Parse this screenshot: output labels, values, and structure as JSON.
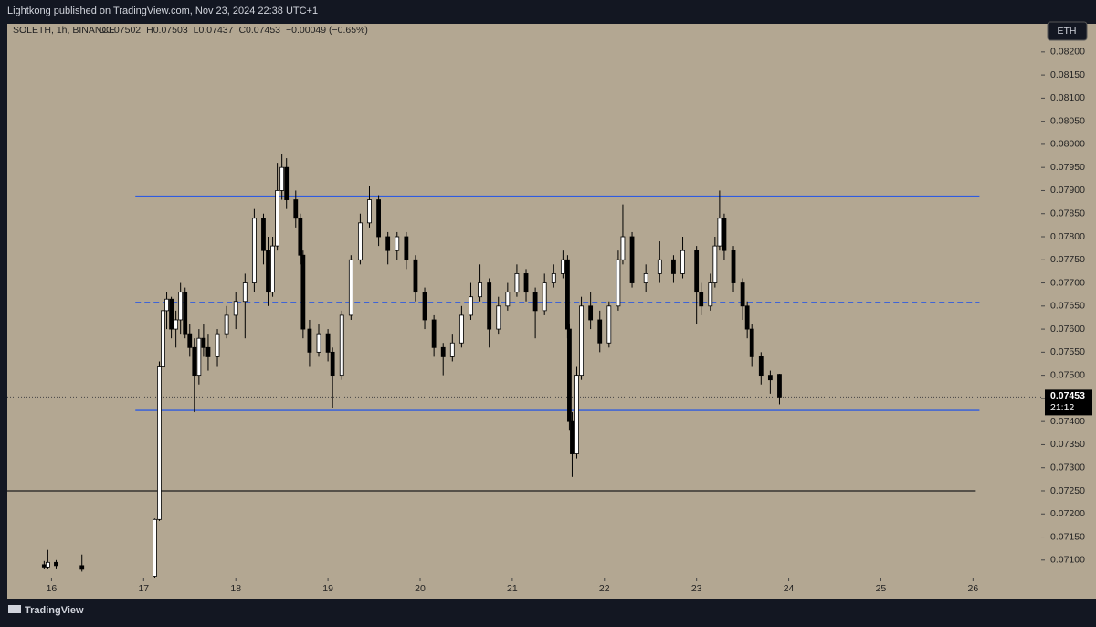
{
  "header": {
    "publisher": "Lightkong published on TradingView.com, Nov 23, 2024 22:38 UTC+1",
    "brand": "TradingView",
    "currency_button": "ETH"
  },
  "chart_data": {
    "type": "candlestick",
    "symbol": "SOLETH, 1h, BINANCE",
    "legend_values": [
      "O0.07502",
      "H0.07503",
      "L0.07437",
      "C0.07453",
      "−0.00049 (−0.65%)"
    ],
    "up_color": "#ffffff",
    "down_color": "#000000",
    "outline_color": "#000000",
    "background": "#b3a792",
    "xlim": [
      15.52,
      26.74
    ],
    "xticks": [
      16,
      17,
      18,
      19,
      20,
      21,
      22,
      23,
      24,
      25,
      26
    ],
    "ylim": [
      0.07062,
      0.08261
    ],
    "yticks": [
      {
        "value": 0.071,
        "label": "0.07100"
      },
      {
        "value": 0.0715,
        "label": "0.07150"
      },
      {
        "value": 0.072,
        "label": "0.07200"
      },
      {
        "value": 0.0725,
        "label": "0.07250"
      },
      {
        "value": 0.073,
        "label": "0.07300"
      },
      {
        "value": 0.0735,
        "label": "0.07350"
      },
      {
        "value": 0.074,
        "label": "0.07400"
      },
      {
        "value": 0.0745,
        "label": "0.07450"
      },
      {
        "value": 0.075,
        "label": "0.07500"
      },
      {
        "value": 0.0755,
        "label": "0.07550"
      },
      {
        "value": 0.076,
        "label": "0.07600"
      },
      {
        "value": 0.0765,
        "label": "0.07650"
      },
      {
        "value": 0.077,
        "label": "0.07700"
      },
      {
        "value": 0.0775,
        "label": "0.07750"
      },
      {
        "value": 0.078,
        "label": "0.07800"
      },
      {
        "value": 0.0785,
        "label": "0.07850"
      },
      {
        "value": 0.079,
        "label": "0.07900"
      },
      {
        "value": 0.0795,
        "label": "0.07950"
      },
      {
        "value": 0.08,
        "label": "0.08000"
      },
      {
        "value": 0.0805,
        "label": "0.08050"
      },
      {
        "value": 0.081,
        "label": "0.08100"
      },
      {
        "value": 0.0815,
        "label": "0.08150"
      },
      {
        "value": 0.082,
        "label": "0.08200"
      }
    ],
    "last_price": {
      "value": 0.07453,
      "label": "0.07453"
    },
    "countdown": "21:12",
    "levels": [
      {
        "value": 0.07888,
        "style": "solid",
        "color": "#2f5be0",
        "x": [
          16.91,
          26.07
        ]
      },
      {
        "value": 0.07658,
        "style": "dashed",
        "color": "#2f5be0",
        "x": [
          16.91,
          26.07
        ]
      },
      {
        "value": 0.07424,
        "style": "solid",
        "color": "#2f5be0",
        "x": [
          16.91,
          26.07
        ]
      },
      {
        "value": 0.0725,
        "style": "solid",
        "color": "#1e1e1e",
        "x": [
          15.52,
          26.03
        ]
      }
    ],
    "x": [
      15.92,
      15.96,
      16.05,
      16.33,
      17.12,
      17.17,
      17.21,
      17.25,
      17.3,
      17.35,
      17.4,
      17.45,
      17.5,
      17.55,
      17.6,
      17.65,
      17.7,
      17.8,
      17.9,
      18.0,
      18.1,
      18.2,
      18.3,
      18.35,
      18.4,
      18.45,
      18.5,
      18.55,
      18.65,
      18.7,
      18.73,
      18.8,
      18.9,
      19.0,
      19.05,
      19.15,
      19.25,
      19.35,
      19.45,
      19.55,
      19.65,
      19.75,
      19.85,
      19.95,
      20.05,
      20.15,
      20.25,
      20.35,
      20.45,
      20.55,
      20.65,
      20.75,
      20.85,
      20.95,
      21.05,
      21.15,
      21.25,
      21.35,
      21.45,
      21.55,
      21.6,
      21.62,
      21.65,
      21.7,
      21.75,
      21.85,
      21.95,
      22.05,
      22.15,
      22.2,
      22.3,
      22.45,
      22.6,
      22.75,
      22.85,
      23.0,
      23.05,
      23.15,
      23.2,
      23.25,
      23.3,
      23.4,
      23.5,
      23.55,
      23.6,
      23.7,
      23.8,
      23.9
    ],
    "ohlc": [
      [
        0.0709,
        0.07098,
        0.0708,
        0.07085
      ],
      [
        0.07085,
        0.07122,
        0.0708,
        0.07095
      ],
      [
        0.07095,
        0.071,
        0.07082,
        0.07088
      ],
      [
        0.07088,
        0.07112,
        0.07075,
        0.0708
      ],
      [
        0.07065,
        0.0719,
        0.0706,
        0.07188
      ],
      [
        0.07188,
        0.0753,
        0.07185,
        0.0752
      ],
      [
        0.0752,
        0.0766,
        0.0751,
        0.0764
      ],
      [
        0.0764,
        0.0768,
        0.076,
        0.07665
      ],
      [
        0.07665,
        0.0767,
        0.0758,
        0.076
      ],
      [
        0.076,
        0.0764,
        0.0756,
        0.0762
      ],
      [
        0.0762,
        0.077,
        0.0759,
        0.0768
      ],
      [
        0.0768,
        0.0769,
        0.0758,
        0.0759
      ],
      [
        0.0759,
        0.0761,
        0.0754,
        0.0756
      ],
      [
        0.0756,
        0.0758,
        0.0742,
        0.075
      ],
      [
        0.075,
        0.076,
        0.0748,
        0.0758
      ],
      [
        0.0758,
        0.0761,
        0.0754,
        0.0756
      ],
      [
        0.0756,
        0.0759,
        0.0751,
        0.0754
      ],
      [
        0.0754,
        0.076,
        0.0752,
        0.0759
      ],
      [
        0.0759,
        0.0765,
        0.0758,
        0.0763
      ],
      [
        0.0763,
        0.0768,
        0.076,
        0.0766
      ],
      [
        0.0766,
        0.0772,
        0.0758,
        0.077
      ],
      [
        0.077,
        0.0786,
        0.0768,
        0.0784
      ],
      [
        0.0784,
        0.0785,
        0.0774,
        0.0777
      ],
      [
        0.0777,
        0.078,
        0.0765,
        0.0768
      ],
      [
        0.0768,
        0.078,
        0.0767,
        0.0778
      ],
      [
        0.0778,
        0.0796,
        0.0777,
        0.079
      ],
      [
        0.079,
        0.0798,
        0.0788,
        0.0795
      ],
      [
        0.0795,
        0.0797,
        0.0786,
        0.0788
      ],
      [
        0.0788,
        0.079,
        0.0782,
        0.0784
      ],
      [
        0.0784,
        0.0785,
        0.0774,
        0.0776
      ],
      [
        0.0776,
        0.0777,
        0.0758,
        0.076
      ],
      [
        0.076,
        0.0762,
        0.0752,
        0.0755
      ],
      [
        0.0755,
        0.0761,
        0.0754,
        0.0759
      ],
      [
        0.0759,
        0.076,
        0.0753,
        0.0755
      ],
      [
        0.0755,
        0.0756,
        0.0743,
        0.075
      ],
      [
        0.075,
        0.0764,
        0.0749,
        0.0763
      ],
      [
        0.0763,
        0.0776,
        0.0762,
        0.0775
      ],
      [
        0.0775,
        0.0785,
        0.0774,
        0.0783
      ],
      [
        0.0783,
        0.0791,
        0.0782,
        0.0788
      ],
      [
        0.0788,
        0.0789,
        0.0778,
        0.078
      ],
      [
        0.078,
        0.0781,
        0.0774,
        0.0777
      ],
      [
        0.0777,
        0.0781,
        0.0775,
        0.078
      ],
      [
        0.078,
        0.0781,
        0.0773,
        0.0775
      ],
      [
        0.0775,
        0.0776,
        0.0766,
        0.0768
      ],
      [
        0.0768,
        0.0769,
        0.076,
        0.0762
      ],
      [
        0.0762,
        0.0763,
        0.0754,
        0.0756
      ],
      [
        0.0756,
        0.0757,
        0.075,
        0.0754
      ],
      [
        0.0754,
        0.0759,
        0.0753,
        0.0757
      ],
      [
        0.0757,
        0.0765,
        0.0756,
        0.0763
      ],
      [
        0.0763,
        0.077,
        0.0762,
        0.0767
      ],
      [
        0.0767,
        0.0774,
        0.0766,
        0.077
      ],
      [
        0.077,
        0.0771,
        0.0756,
        0.076
      ],
      [
        0.076,
        0.0767,
        0.0759,
        0.0765
      ],
      [
        0.0765,
        0.077,
        0.0764,
        0.0768
      ],
      [
        0.0768,
        0.0774,
        0.0767,
        0.0772
      ],
      [
        0.0772,
        0.0773,
        0.0766,
        0.0768
      ],
      [
        0.0768,
        0.0769,
        0.0758,
        0.0764
      ],
      [
        0.0764,
        0.0772,
        0.0763,
        0.077
      ],
      [
        0.077,
        0.0774,
        0.0769,
        0.0772
      ],
      [
        0.0772,
        0.0777,
        0.0771,
        0.0775
      ],
      [
        0.0775,
        0.0776,
        0.0758,
        0.076
      ],
      [
        0.076,
        0.0761,
        0.0738,
        0.074
      ],
      [
        0.074,
        0.0742,
        0.0728,
        0.0733
      ],
      [
        0.0733,
        0.0752,
        0.0732,
        0.075
      ],
      [
        0.075,
        0.0767,
        0.0749,
        0.0765
      ],
      [
        0.0765,
        0.0768,
        0.076,
        0.0762
      ],
      [
        0.0762,
        0.0764,
        0.0755,
        0.0757
      ],
      [
        0.0757,
        0.0766,
        0.0756,
        0.0765
      ],
      [
        0.0765,
        0.0777,
        0.0764,
        0.0775
      ],
      [
        0.0775,
        0.0787,
        0.0774,
        0.078
      ],
      [
        0.078,
        0.0781,
        0.0769,
        0.077
      ],
      [
        0.077,
        0.0774,
        0.0768,
        0.0772
      ],
      [
        0.0772,
        0.0779,
        0.077,
        0.0775
      ],
      [
        0.0775,
        0.0776,
        0.077,
        0.0772
      ],
      [
        0.0772,
        0.078,
        0.0771,
        0.0777
      ],
      [
        0.0777,
        0.0778,
        0.0761,
        0.0768
      ],
      [
        0.0768,
        0.077,
        0.0763,
        0.0765
      ],
      [
        0.0765,
        0.0772,
        0.0764,
        0.077
      ],
      [
        0.077,
        0.078,
        0.0769,
        0.0778
      ],
      [
        0.0778,
        0.079,
        0.0777,
        0.0784
      ],
      [
        0.0784,
        0.0785,
        0.0775,
        0.0777
      ],
      [
        0.0777,
        0.0778,
        0.0768,
        0.077
      ],
      [
        0.077,
        0.0771,
        0.0762,
        0.0765
      ],
      [
        0.0765,
        0.0766,
        0.0758,
        0.076
      ],
      [
        0.076,
        0.0761,
        0.0752,
        0.0754
      ],
      [
        0.0754,
        0.0755,
        0.0748,
        0.075
      ],
      [
        0.075,
        0.0751,
        0.0746,
        0.0749
      ],
      [
        0.07502,
        0.07503,
        0.07437,
        0.07453
      ]
    ]
  }
}
